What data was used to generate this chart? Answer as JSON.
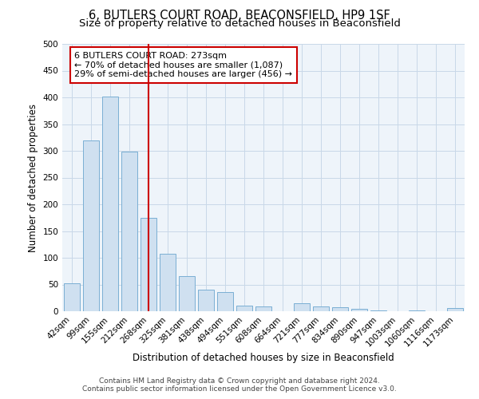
{
  "title": "6, BUTLERS COURT ROAD, BEACONSFIELD, HP9 1SF",
  "subtitle": "Size of property relative to detached houses in Beaconsfield",
  "xlabel": "Distribution of detached houses by size in Beaconsfield",
  "ylabel": "Number of detached properties",
  "footnote1": "Contains HM Land Registry data © Crown copyright and database right 2024.",
  "footnote2": "Contains public sector information licensed under the Open Government Licence v3.0.",
  "bar_labels": [
    "42sqm",
    "99sqm",
    "155sqm",
    "212sqm",
    "268sqm",
    "325sqm",
    "381sqm",
    "438sqm",
    "494sqm",
    "551sqm",
    "608sqm",
    "664sqm",
    "721sqm",
    "777sqm",
    "834sqm",
    "890sqm",
    "947sqm",
    "1003sqm",
    "1060sqm",
    "1116sqm",
    "1173sqm"
  ],
  "bar_values": [
    52,
    320,
    402,
    298,
    175,
    108,
    65,
    40,
    36,
    10,
    9,
    0,
    15,
    9,
    7,
    5,
    2,
    0,
    1,
    0,
    6
  ],
  "bar_color": "#cfe0f0",
  "bar_edge_color": "#7aafd4",
  "vline_x": 4,
  "vline_color": "#cc0000",
  "ylim": [
    0,
    500
  ],
  "yticks": [
    0,
    50,
    100,
    150,
    200,
    250,
    300,
    350,
    400,
    450,
    500
  ],
  "annotation_text": "6 BUTLERS COURT ROAD: 273sqm\n← 70% of detached houses are smaller (1,087)\n29% of semi-detached houses are larger (456) →",
  "annotation_box_facecolor": "#ffffff",
  "annotation_box_edgecolor": "#cc0000",
  "title_fontsize": 10.5,
  "subtitle_fontsize": 9.5,
  "axis_label_fontsize": 8.5,
  "tick_fontsize": 7.5,
  "annotation_fontsize": 8,
  "footnote_fontsize": 6.5,
  "grid_color": "#c8d8e8",
  "bg_color": "#eef4fa"
}
